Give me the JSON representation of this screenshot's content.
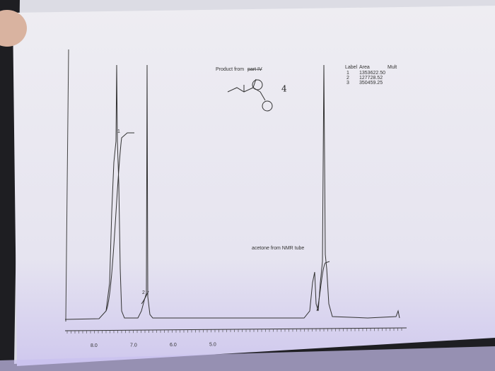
{
  "title": {
    "prefix": "Product from",
    "struck": "part IV"
  },
  "handwritten_note": "4",
  "annotation": "acetone from NMR tube",
  "integral_table": {
    "headers": [
      "Label",
      "Area",
      "Mult"
    ],
    "rows": [
      [
        "1",
        "1353622.50"
      ],
      [
        "2",
        "127728.52"
      ],
      [
        "3",
        "350459.25"
      ]
    ]
  },
  "peak_labels": [
    "1",
    "2"
  ],
  "axis_labels": [
    "8.0",
    "7.0",
    "6.0",
    "5.0"
  ]
}
